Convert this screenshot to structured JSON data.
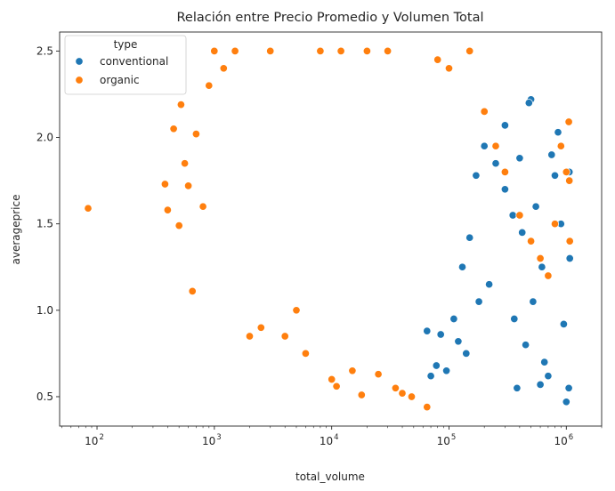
{
  "chart_data": {
    "type": "scatter",
    "title": "Relación entre Precio Promedio y Volumen Total",
    "xlabel": "total_volume",
    "ylabel": "averageprice",
    "xscale": "log",
    "xlim": [
      48,
      2000000
    ],
    "ylim": [
      0.33,
      2.61
    ],
    "x_ticks": [
      {
        "value": 100,
        "base": "10",
        "exp": "2"
      },
      {
        "value": 1000,
        "base": "10",
        "exp": "3"
      },
      {
        "value": 10000,
        "base": "10",
        "exp": "4"
      },
      {
        "value": 100000,
        "base": "10",
        "exp": "5"
      },
      {
        "value": 1000000,
        "base": "10",
        "exp": "6"
      }
    ],
    "y_ticks": [
      "0.5",
      "1.0",
      "1.5",
      "2.0",
      "2.5"
    ],
    "grid": false,
    "legend": {
      "title": "type",
      "placement": "top-left",
      "entries": [
        {
          "label": "conventional",
          "color": "#1f77b4"
        },
        {
          "label": "organic",
          "color": "#ff7f0e"
        }
      ]
    },
    "series": [
      {
        "name": "conventional",
        "color": "#1f77b4",
        "points": [
          [
            65000,
            0.88
          ],
          [
            70000,
            0.62
          ],
          [
            78000,
            0.68
          ],
          [
            85000,
            0.86
          ],
          [
            95000,
            0.65
          ],
          [
            110000,
            0.95
          ],
          [
            130000,
            1.25
          ],
          [
            150000,
            1.42
          ],
          [
            170000,
            1.78
          ],
          [
            200000,
            1.95
          ],
          [
            250000,
            1.85
          ],
          [
            300000,
            1.7
          ],
          [
            350000,
            1.55
          ],
          [
            420000,
            1.45
          ],
          [
            500000,
            2.22
          ],
          [
            480000,
            2.2
          ],
          [
            600000,
            0.57
          ],
          [
            700000,
            0.62
          ],
          [
            800000,
            1.78
          ],
          [
            900000,
            1.5
          ],
          [
            1000000,
            0.47
          ],
          [
            1050000,
            0.55
          ],
          [
            1070000,
            1.3
          ],
          [
            380000,
            0.55
          ],
          [
            450000,
            0.8
          ],
          [
            520000,
            1.05
          ],
          [
            620000,
            1.25
          ],
          [
            750000,
            1.9
          ],
          [
            850000,
            2.03
          ],
          [
            300000,
            2.07
          ],
          [
            220000,
            1.15
          ],
          [
            180000,
            1.05
          ],
          [
            140000,
            0.75
          ],
          [
            120000,
            0.82
          ],
          [
            360000,
            0.95
          ],
          [
            550000,
            1.6
          ],
          [
            650000,
            0.7
          ],
          [
            950000,
            0.92
          ],
          [
            1060000,
            1.8
          ],
          [
            400000,
            1.88
          ]
        ]
      },
      {
        "name": "organic",
        "color": "#ff7f0e",
        "points": [
          [
            84,
            1.59
          ],
          [
            380,
            1.73
          ],
          [
            400,
            1.58
          ],
          [
            450,
            2.05
          ],
          [
            500,
            1.49
          ],
          [
            520,
            2.19
          ],
          [
            560,
            1.85
          ],
          [
            600,
            1.72
          ],
          [
            650,
            1.11
          ],
          [
            700,
            2.02
          ],
          [
            800,
            1.6
          ],
          [
            900,
            2.3
          ],
          [
            1000,
            2.5
          ],
          [
            1200,
            2.4
          ],
          [
            1500,
            2.5
          ],
          [
            2000,
            0.85
          ],
          [
            2500,
            0.9
          ],
          [
            3000,
            2.5
          ],
          [
            4000,
            0.85
          ],
          [
            5000,
            1.0
          ],
          [
            6000,
            0.75
          ],
          [
            8000,
            2.5
          ],
          [
            10000,
            0.6
          ],
          [
            11000,
            0.56
          ],
          [
            12000,
            2.5
          ],
          [
            15000,
            0.65
          ],
          [
            18000,
            0.51
          ],
          [
            20000,
            2.5
          ],
          [
            25000,
            0.63
          ],
          [
            30000,
            2.5
          ],
          [
            35000,
            0.55
          ],
          [
            40000,
            0.52
          ],
          [
            48000,
            0.5
          ],
          [
            65000,
            0.44
          ],
          [
            80000,
            2.45
          ],
          [
            100000,
            2.4
          ],
          [
            150000,
            2.5
          ],
          [
            200000,
            2.15
          ],
          [
            250000,
            1.95
          ],
          [
            300000,
            1.8
          ],
          [
            400000,
            1.55
          ],
          [
            500000,
            1.4
          ],
          [
            600000,
            1.3
          ],
          [
            800000,
            1.5
          ],
          [
            1050000,
            2.09
          ],
          [
            1060000,
            1.75
          ],
          [
            1070000,
            1.4
          ],
          [
            1000000,
            1.8
          ],
          [
            900000,
            1.95
          ],
          [
            700000,
            1.2
          ]
        ]
      }
    ]
  }
}
